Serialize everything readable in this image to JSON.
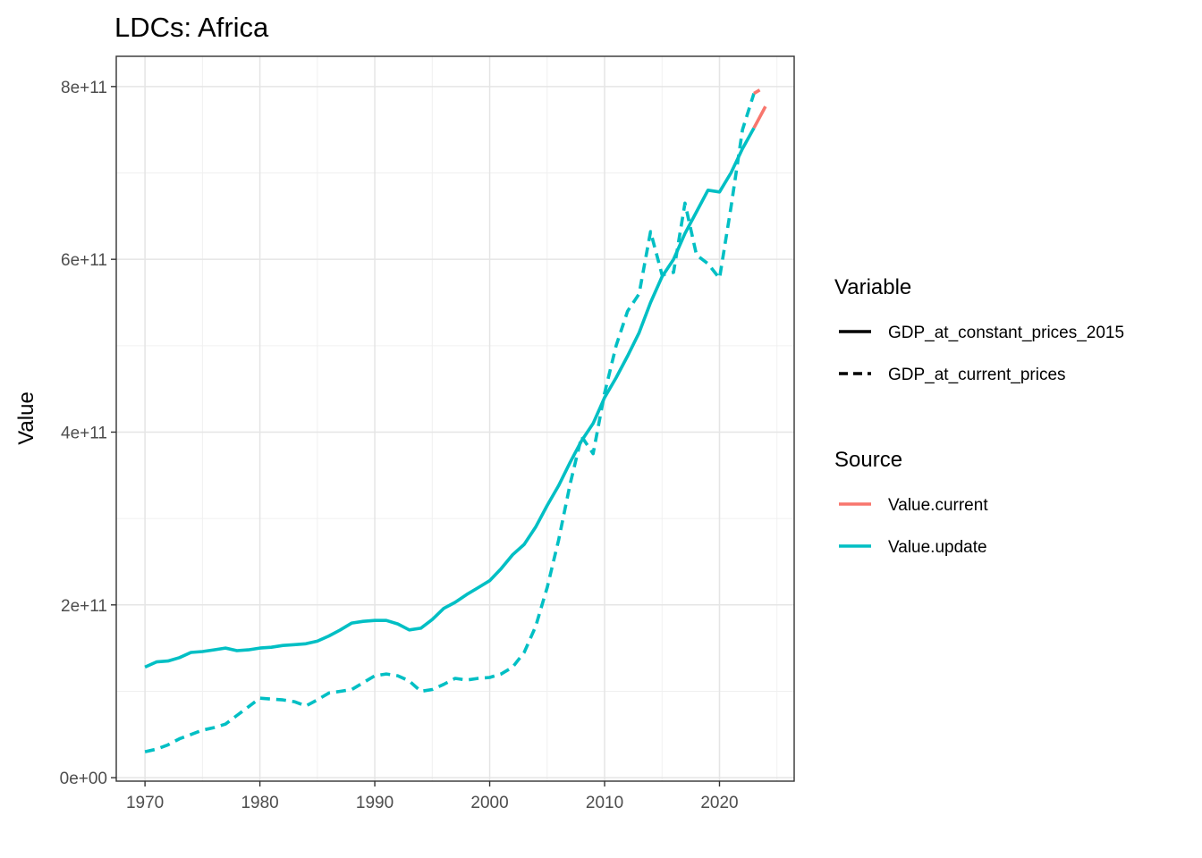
{
  "chart_data": {
    "type": "line",
    "title": "LDCs: Africa",
    "xlabel": "",
    "ylabel": "Value",
    "xlim": [
      1967.5,
      2026.5
    ],
    "ylim": [
      -4000000000.0,
      835000000000.0
    ],
    "x_ticks": [
      1970,
      1980,
      1990,
      2000,
      2010,
      2020
    ],
    "x_tick_labels": [
      "1970",
      "1980",
      "1990",
      "2000",
      "2010",
      "2020"
    ],
    "y_ticks": [
      0,
      200000000000,
      400000000000,
      600000000000,
      800000000000
    ],
    "y_tick_labels": [
      "0e+00",
      "2e+11",
      "4e+11",
      "6e+11",
      "8e+11"
    ],
    "grid": true,
    "legend_position": "right",
    "legend": {
      "variable": {
        "title": "Variable",
        "entries": [
          {
            "label": "GDP_at_constant_prices_2015",
            "linetype": "solid"
          },
          {
            "label": "GDP_at_current_prices",
            "linetype": "dashed"
          }
        ]
      },
      "source": {
        "title": "Source",
        "entries": [
          {
            "label": "Value.current",
            "color": "#F8766D"
          },
          {
            "label": "Value.update",
            "color": "#00BFC4"
          }
        ]
      }
    },
    "series": [
      {
        "name": "GDP_at_constant_prices_2015",
        "source": "Value.update",
        "color": "#00BFC4",
        "linetype": "solid",
        "x": [
          1970,
          1971,
          1972,
          1973,
          1974,
          1975,
          1976,
          1977,
          1978,
          1979,
          1980,
          1981,
          1982,
          1983,
          1984,
          1985,
          1986,
          1987,
          1988,
          1989,
          1990,
          1991,
          1992,
          1993,
          1994,
          1995,
          1996,
          1997,
          1998,
          1999,
          2000,
          2001,
          2002,
          2003,
          2004,
          2005,
          2006,
          2007,
          2008,
          2009,
          2010,
          2011,
          2012,
          2013,
          2014,
          2015,
          2016,
          2017,
          2018,
          2019,
          2020,
          2021,
          2022,
          2023
        ],
        "y": [
          128000000000.0,
          134000000000.0,
          135000000000.0,
          139000000000.0,
          145000000000.0,
          146000000000.0,
          148000000000.0,
          150000000000.0,
          147000000000.0,
          148000000000.0,
          150000000000.0,
          151000000000.0,
          153000000000.0,
          154000000000.0,
          155000000000.0,
          158000000000.0,
          164000000000.0,
          171000000000.0,
          179000000000.0,
          181000000000.0,
          182000000000.0,
          182000000000.0,
          178000000000.0,
          171000000000.0,
          173000000000.0,
          183000000000.0,
          196000000000.0,
          203000000000.0,
          212000000000.0,
          220000000000.0,
          228000000000.0,
          242000000000.0,
          258000000000.0,
          270000000000.0,
          290000000000.0,
          315000000000.0,
          338000000000.0,
          365000000000.0,
          390000000000.0,
          410000000000.0,
          440000000000.0,
          463000000000.0,
          488000000000.0,
          515000000000.0,
          550000000000.0,
          580000000000.0,
          600000000000.0,
          630000000000.0,
          655000000000.0,
          680000000000.0,
          678000000000.0,
          700000000000.0,
          728000000000.0,
          752000000000.0
        ]
      },
      {
        "name": "GDP_at_constant_prices_2015",
        "source": "Value.current",
        "color": "#F8766D",
        "linetype": "solid",
        "x": [
          2023,
          2024
        ],
        "y": [
          752000000000.0,
          777000000000.0
        ]
      },
      {
        "name": "GDP_at_current_prices",
        "source": "Value.update",
        "color": "#00BFC4",
        "linetype": "dashed",
        "x": [
          1970,
          1971,
          1972,
          1973,
          1974,
          1975,
          1976,
          1977,
          1978,
          1979,
          1980,
          1981,
          1982,
          1983,
          1984,
          1985,
          1986,
          1987,
          1988,
          1989,
          1990,
          1991,
          1992,
          1993,
          1994,
          1995,
          1996,
          1997,
          1998,
          1999,
          2000,
          2001,
          2002,
          2003,
          2004,
          2005,
          2006,
          2007,
          2008,
          2009,
          2010,
          2011,
          2012,
          2013,
          2014,
          2015,
          2016,
          2017,
          2018,
          2019,
          2020,
          2021,
          2022,
          2023
        ],
        "y": [
          30000000000.0,
          33000000000.0,
          38000000000.0,
          45000000000.0,
          50000000000.0,
          55000000000.0,
          58000000000.0,
          62000000000.0,
          72000000000.0,
          82000000000.0,
          92000000000.0,
          91000000000.0,
          90000000000.0,
          88000000000.0,
          83000000000.0,
          90000000000.0,
          98000000000.0,
          100000000000.0,
          102000000000.0,
          110000000000.0,
          118000000000.0,
          120000000000.0,
          118000000000.0,
          112000000000.0,
          100000000000.0,
          102000000000.0,
          108000000000.0,
          115000000000.0,
          113000000000.0,
          115000000000.0,
          116000000000.0,
          120000000000.0,
          128000000000.0,
          145000000000.0,
          175000000000.0,
          220000000000.0,
          275000000000.0,
          340000000000.0,
          395000000000.0,
          375000000000.0,
          445000000000.0,
          500000000000.0,
          540000000000.0,
          560000000000.0,
          632000000000.0,
          582000000000.0,
          585000000000.0,
          665000000000.0,
          605000000000.0,
          595000000000.0,
          578000000000.0,
          660000000000.0,
          750000000000.0,
          792000000000.0
        ]
      },
      {
        "name": "GDP_at_current_prices",
        "source": "Value.current",
        "color": "#F8766D",
        "linetype": "dashed",
        "x": [
          2023,
          2023.5
        ],
        "y": [
          792000000000.0,
          796000000000.0
        ]
      }
    ]
  }
}
